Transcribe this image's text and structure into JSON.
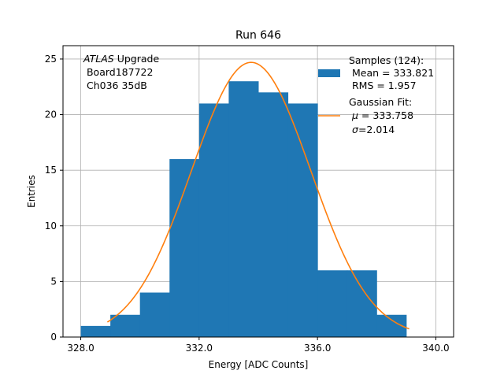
{
  "chart_data": {
    "type": "bar",
    "title": "Run 646",
    "xlabel": "Energy [ADC Counts]",
    "ylabel": "Entries",
    "xlim": [
      327.4,
      340.6
    ],
    "ylim": [
      0,
      26.2
    ],
    "xticks": [
      328,
      332,
      336,
      340
    ],
    "xtick_labels": [
      "328.0",
      "332.0",
      "336.0",
      "340.0"
    ],
    "yticks": [
      0,
      5,
      10,
      15,
      20,
      25
    ],
    "ytick_labels": [
      "0",
      "5",
      "10",
      "15",
      "20",
      "25"
    ],
    "grid": true,
    "histogram": {
      "bin_edges": [
        328,
        329,
        330,
        331,
        332,
        333,
        334,
        335,
        336,
        337,
        338,
        339
      ],
      "counts": [
        1,
        2,
        4,
        16,
        21,
        23,
        22,
        21,
        6,
        6,
        2
      ]
    },
    "gaussian_fit": {
      "mu": 333.758,
      "sigma": 2.014,
      "amplitude": 24.7,
      "x_range": [
        328.9,
        339.1
      ]
    },
    "annotation": {
      "italic": "ATLAS",
      "rest": " Upgrade",
      "line2": " Board187722",
      "line3": " Ch036 35dB"
    },
    "legend": {
      "position": "top-right",
      "samples": {
        "line1": "Samples (124):",
        "line2": " Mean = 333.821",
        "line3": " RMS = 1.957"
      },
      "fit": {
        "line1": "Gaussian Fit:",
        "mu_symbol": "μ",
        "mu_text": " = 333.758",
        "sigma_symbol": "σ",
        "sigma_text": "=2.014"
      }
    },
    "colors": {
      "bars": "#1f77b4",
      "fit_line": "#ff7f0e",
      "grid": "#b0b0b0"
    }
  }
}
